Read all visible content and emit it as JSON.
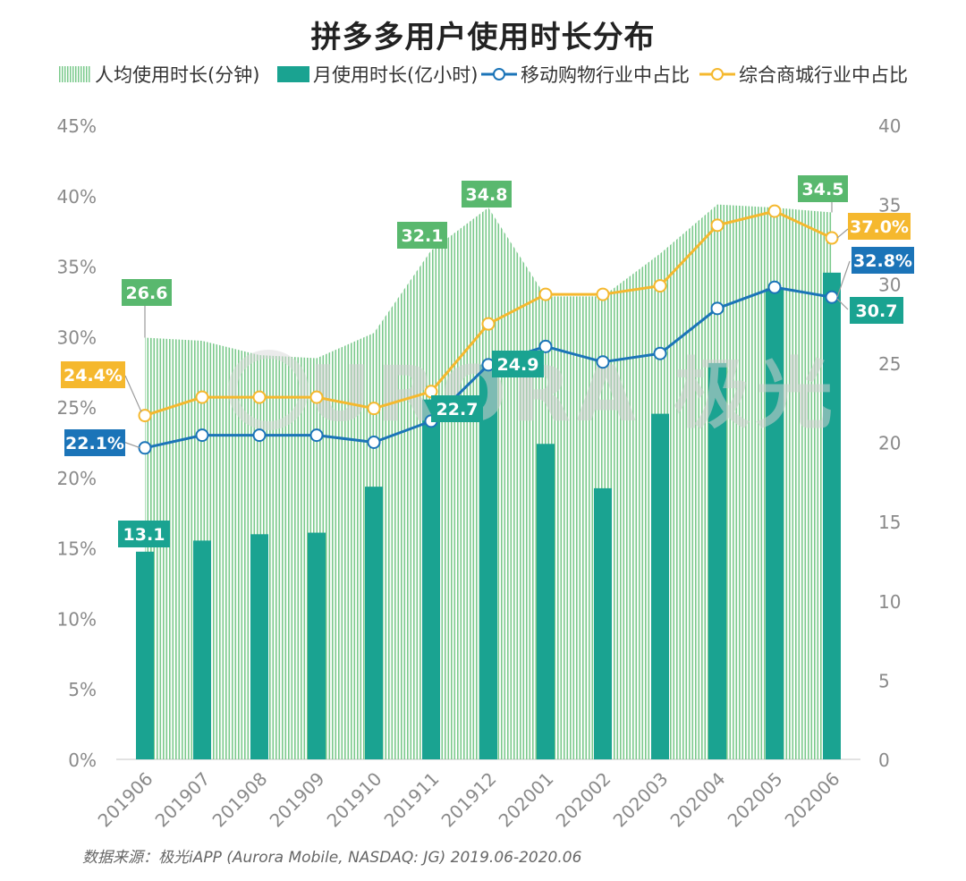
{
  "title": "拼多多用户使用时长分布",
  "legend": {
    "avg": "人均使用时长(分钟)",
    "monthly": "月使用时长(亿小时)",
    "mobile": "移动购物行业中占比",
    "general": "综合商城行业中占比"
  },
  "source": "数据来源：极光iAPP (Aurora Mobile, NASDAQ: JG) 2019.06-2020.06",
  "watermark": "URORA 极光",
  "colors": {
    "area": "#7ac98b",
    "bar": "#1aa391",
    "mobile": "#1b74b8",
    "general": "#f5b82e",
    "avgLabel": "#59b86e",
    "barLabel": "#1aa391"
  },
  "chart_data": {
    "type": "combo",
    "categories": [
      "201906",
      "201907",
      "201908",
      "201909",
      "201910",
      "201911",
      "201912",
      "202001",
      "202002",
      "202003",
      "202004",
      "202005",
      "202006"
    ],
    "left_axis": {
      "min": 0,
      "max": 45,
      "ticks": [
        "0%",
        "5%",
        "10%",
        "15%",
        "20%",
        "25%",
        "30%",
        "35%",
        "40%",
        "45%"
      ]
    },
    "right_axis": {
      "min": 0,
      "max": 40,
      "ticks": [
        "0",
        "5",
        "10",
        "15",
        "20",
        "25",
        "30",
        "35",
        "40"
      ]
    },
    "series": [
      {
        "name": "人均使用时长(分钟)",
        "type": "area",
        "axis": "right",
        "values": [
          26.6,
          26.4,
          25.5,
          25.3,
          26.9,
          32.1,
          34.8,
          29.2,
          29.2,
          31.9,
          35.0,
          34.8,
          34.5
        ]
      },
      {
        "name": "月使用时长(亿小时)",
        "type": "bar",
        "axis": "right",
        "values": [
          13.1,
          13.8,
          14.2,
          14.3,
          17.2,
          22.7,
          24.9,
          19.9,
          17.1,
          21.8,
          25.0,
          29.7,
          30.7
        ]
      },
      {
        "name": "移动购物行业中占比",
        "type": "line",
        "axis": "left",
        "values": [
          22.1,
          23.0,
          23.0,
          23.0,
          22.5,
          24.0,
          28.0,
          29.3,
          28.2,
          28.8,
          32.0,
          33.5,
          32.8
        ]
      },
      {
        "name": "综合商城行业中占比",
        "type": "line",
        "axis": "left",
        "values": [
          24.4,
          25.7,
          25.7,
          25.7,
          24.9,
          26.1,
          30.9,
          33.0,
          33.0,
          33.6,
          37.9,
          38.9,
          37.0
        ]
      }
    ],
    "data_labels": {
      "avg": [
        {
          "index": 0,
          "text": "26.6"
        },
        {
          "index": 5,
          "text": "32.1"
        },
        {
          "index": 6,
          "text": "34.8"
        },
        {
          "index": 12,
          "text": "34.5"
        }
      ],
      "monthly": [
        {
          "index": 0,
          "text": "13.1"
        },
        {
          "index": 5,
          "text": "22.7"
        },
        {
          "index": 6,
          "text": "24.9"
        },
        {
          "index": 12,
          "text": "30.7"
        }
      ],
      "mobile": [
        {
          "index": 0,
          "text": "22.1%"
        },
        {
          "index": 12,
          "text": "32.8%"
        }
      ],
      "general": [
        {
          "index": 0,
          "text": "24.4%"
        },
        {
          "index": 12,
          "text": "37.0%"
        }
      ]
    }
  }
}
